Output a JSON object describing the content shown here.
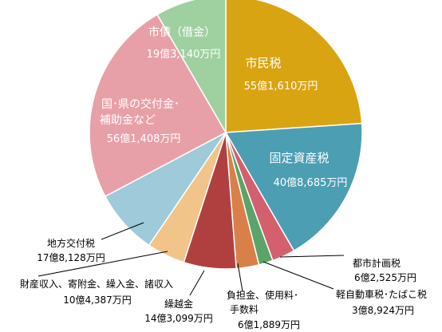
{
  "chart_data": {
    "type": "pie",
    "title": "",
    "unit": "億円",
    "slices": [
      {
        "name": "市民税",
        "amount_text": "55億1,610万円",
        "value": 55.161,
        "color": "#D9A412"
      },
      {
        "name": "固定資産税",
        "amount_text": "40億8,685万円",
        "value": 40.8685,
        "color": "#4C9EB3"
      },
      {
        "name": "都市計画税",
        "amount_text": "6億2,525万円",
        "value": 6.2525,
        "color": "#D45F6E"
      },
      {
        "name": "軽自動車税･たばこ税",
        "amount_text": "3億8,924万円",
        "value": 3.8924,
        "color": "#5AA469"
      },
      {
        "name": "負担金、使用料･手数料",
        "amount_text": "6億1,889万円",
        "value": 6.1889,
        "color": "#D9804A"
      },
      {
        "name": "繰越金",
        "amount_text": "14億3,099万円",
        "value": 14.3099,
        "color": "#B04040"
      },
      {
        "name": "財産収入、寄附金、繰入金、諸収入",
        "amount_text": "10億4,387万円",
        "value": 10.4387,
        "color": "#F1C48A"
      },
      {
        "name": "地方交付税",
        "amount_text": "17億8,128万円",
        "value": 17.8128,
        "color": "#9ECAD9"
      },
      {
        "name": "国･県の交付金･補助金など",
        "amount_text": "56億1,408万円",
        "value": 56.1408,
        "color": "#E8A0A8"
      },
      {
        "name": "市債（借金）",
        "amount_text": "19億3,140万円",
        "value": 19.314,
        "color": "#9FD0A0"
      }
    ]
  }
}
